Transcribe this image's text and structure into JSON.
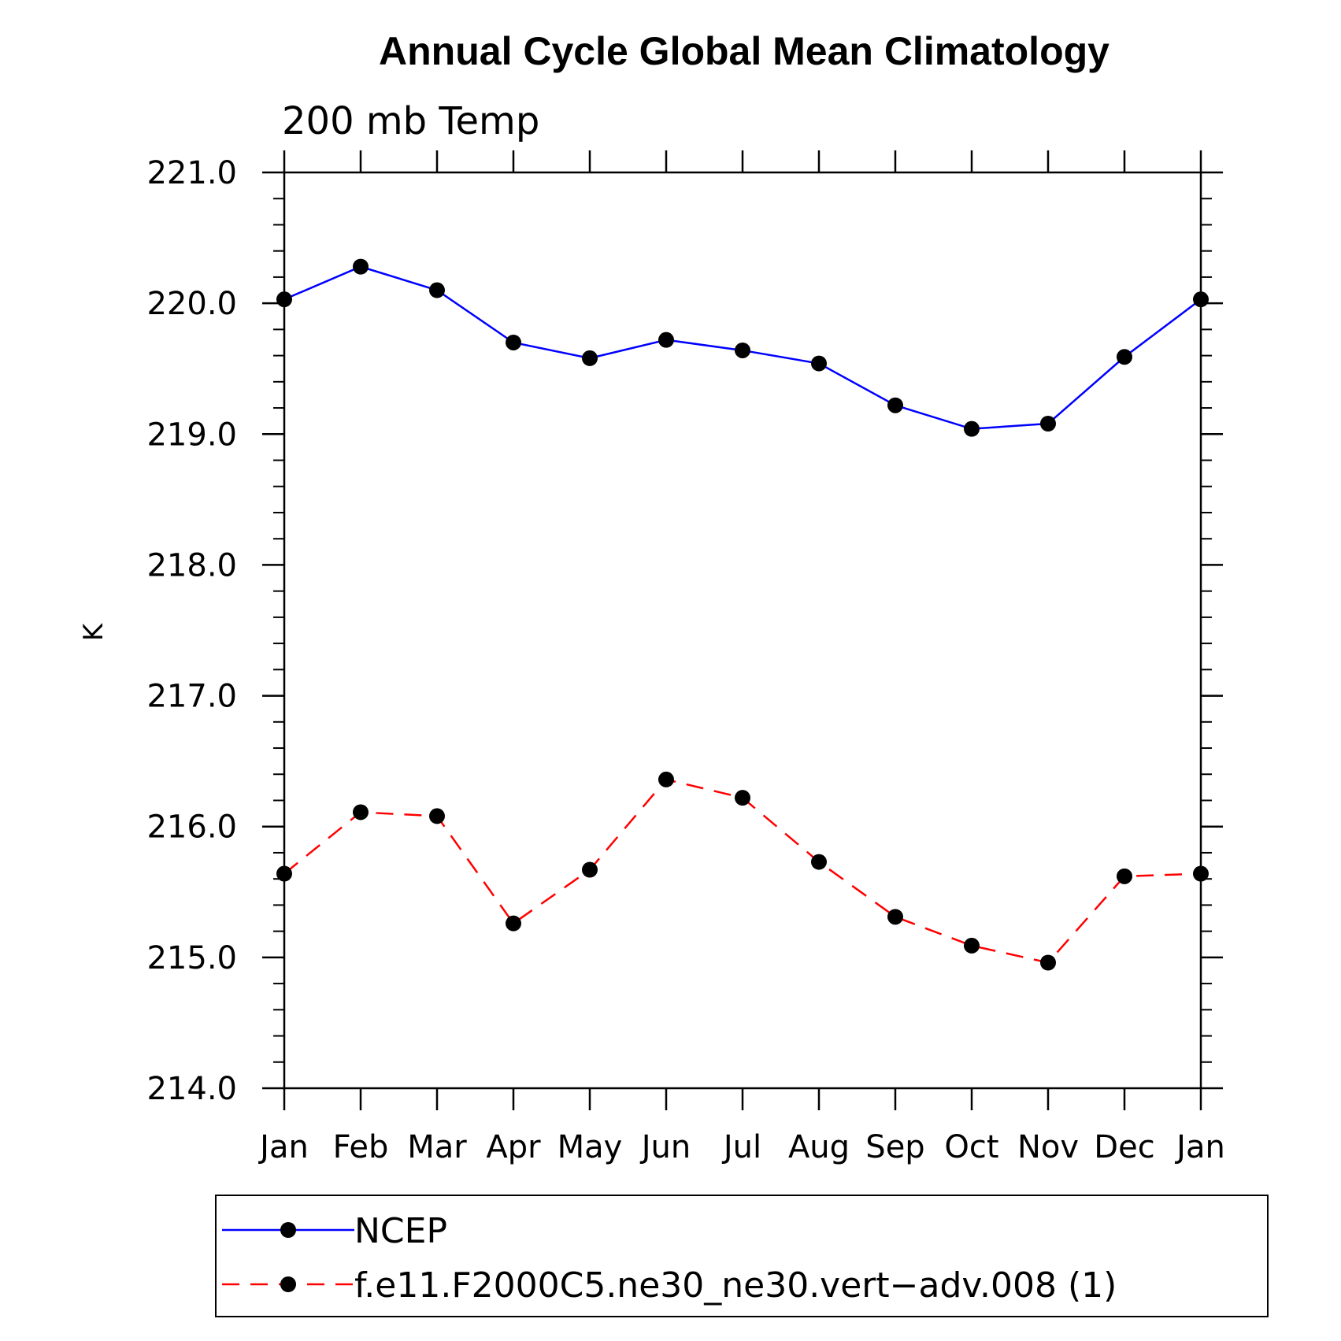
{
  "chart_data": {
    "type": "line",
    "title": "Annual Cycle Global Mean Climatology",
    "subtitle": "200 mb Temp",
    "xlabel": "",
    "ylabel": "K",
    "categories": [
      "Jan",
      "Feb",
      "Mar",
      "Apr",
      "May",
      "Jun",
      "Jul",
      "Aug",
      "Sep",
      "Oct",
      "Nov",
      "Dec",
      "Jan"
    ],
    "ylim": [
      214.0,
      221.0
    ],
    "yticks": [
      "214.0",
      "215.0",
      "216.0",
      "217.0",
      "218.0",
      "219.0",
      "220.0",
      "221.0"
    ],
    "grid": false,
    "legend_position": "bottom",
    "series": [
      {
        "name": "NCEP",
        "color": "#0000ff",
        "dash": "solid",
        "marker": "filled-circle",
        "values": [
          220.03,
          220.28,
          220.1,
          219.7,
          219.58,
          219.72,
          219.64,
          219.54,
          219.22,
          219.04,
          219.08,
          219.59,
          220.03
        ]
      },
      {
        "name": "f.e11.F2000C5.ne30_ne30.vert−adv.008 (1)",
        "color": "#ff0000",
        "dash": "dashed",
        "marker": "filled-circle",
        "values": [
          215.64,
          216.11,
          216.08,
          215.26,
          215.67,
          216.36,
          216.22,
          215.73,
          215.31,
          215.09,
          214.96,
          215.62,
          215.64
        ]
      }
    ]
  }
}
